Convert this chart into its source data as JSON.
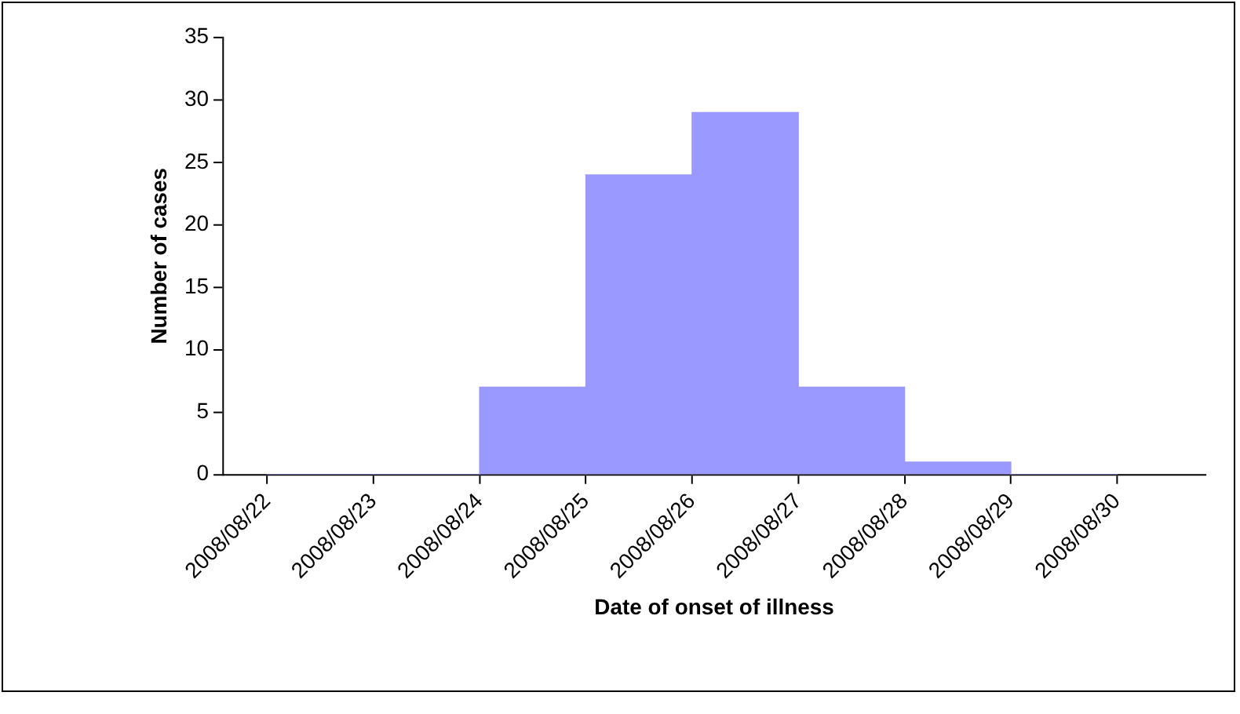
{
  "chart_data": {
    "type": "histogram",
    "xlabel": "Date of onset of illness",
    "ylabel": "Number of cases",
    "bins": [
      "2008-08-22",
      "2008-08-23",
      "2008-08-24",
      "2008-08-25",
      "2008-08-26",
      "2008-08-27",
      "2008-08-28",
      "2008-08-29",
      "2008-08-30"
    ],
    "values": [
      0,
      0,
      7,
      24,
      29,
      7,
      1,
      0
    ],
    "color": "#9999ff",
    "xlim": [
      "2008-08-21T14:00",
      "2008-08-30T20:00"
    ],
    "xticks": [
      {
        "value": "2008-08-22",
        "label": "2008/08/22"
      },
      {
        "value": "2008-08-23",
        "label": "2008/08/23"
      },
      {
        "value": "2008-08-24",
        "label": "2008/08/24"
      },
      {
        "value": "2008-08-25",
        "label": "2008/08/25"
      },
      {
        "value": "2008-08-26",
        "label": "2008/08/26"
      },
      {
        "value": "2008-08-27",
        "label": "2008/08/27"
      },
      {
        "value": "2008-08-28",
        "label": "2008/08/28"
      },
      {
        "value": "2008-08-29",
        "label": "2008/08/29"
      },
      {
        "value": "2008-08-30",
        "label": "2008/08/30"
      }
    ],
    "ylim": [
      0,
      35
    ],
    "yticks": [
      0,
      5,
      10,
      15,
      20,
      25,
      30,
      35
    ],
    "grid": false,
    "legend": false
  }
}
